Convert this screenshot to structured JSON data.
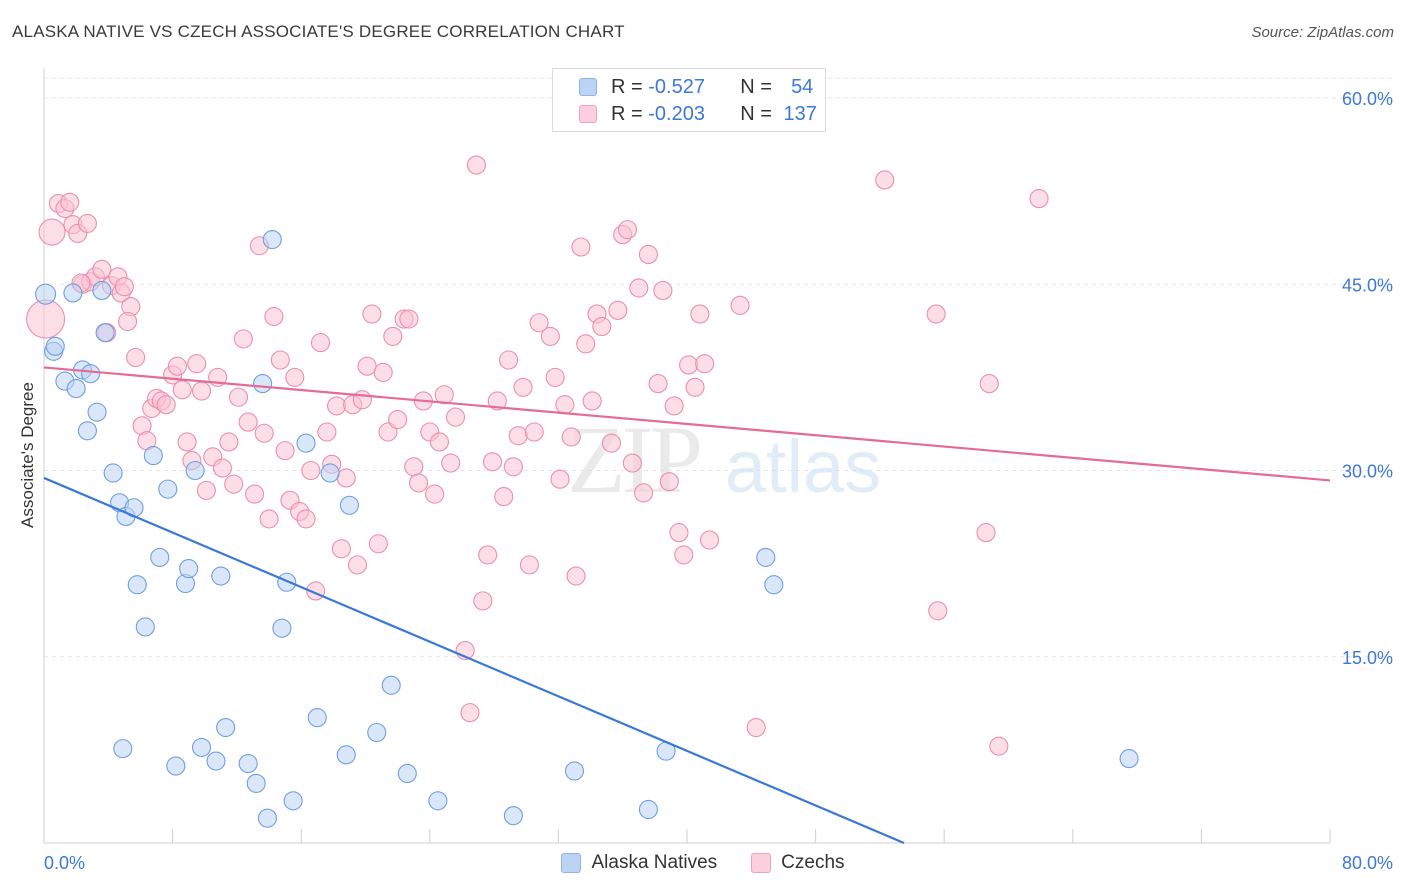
{
  "header": {
    "title": "ALASKA NATIVE VS CZECH ASSOCIATE'S DEGREE CORRELATION CHART",
    "source": "Source: ZipAtlas.com"
  },
  "watermark": {
    "zip": "ZIP",
    "atlas": "atlas"
  },
  "legend": {
    "rows": [
      {
        "r_label": "R =",
        "r_value": "-0.527",
        "n_label": "N =",
        "n_value": "54",
        "color": "#aac9f2"
      },
      {
        "r_label": "R =",
        "r_value": "-0.203",
        "n_label": "N =",
        "n_value": "137",
        "color": "#f7b9cc"
      }
    ]
  },
  "bottom_legend": [
    {
      "label": "Alaska Natives",
      "color": "#aac9f2"
    },
    {
      "label": "Czechs",
      "color": "#f7b9cc"
    }
  ],
  "chart_data": {
    "type": "scatter",
    "ylabel": "Associate's Degree",
    "xlim": [
      0,
      80
    ],
    "ylim": [
      0,
      60
    ],
    "x_tick_labels": [
      "0.0%",
      "80.0%"
    ],
    "y_tick_labels": [
      "15.0%",
      "30.0%",
      "45.0%",
      "60.0%"
    ],
    "y_ticks": [
      15,
      30,
      45,
      60
    ],
    "grid": "horizontal dashed",
    "colors": {
      "blue": "#3a78d6",
      "pink": "#e46b93",
      "tick_text": "#3c78d8"
    },
    "series": [
      {
        "name": "Alaska Natives",
        "color": "#aac9f2",
        "trend": {
          "x": [
            0,
            53.5
          ],
          "y": [
            29.4,
            0
          ]
        },
        "points": [
          [
            0.1,
            44.2
          ],
          [
            0.6,
            39.6
          ],
          [
            0.7,
            40.0
          ],
          [
            1.3,
            37.2
          ],
          [
            1.8,
            44.3
          ],
          [
            2.0,
            36.6
          ],
          [
            2.4,
            38.1
          ],
          [
            2.7,
            33.2
          ],
          [
            2.9,
            37.8
          ],
          [
            3.3,
            34.7
          ],
          [
            3.6,
            44.5
          ],
          [
            3.8,
            41.1
          ],
          [
            4.3,
            29.8
          ],
          [
            4.7,
            27.4
          ],
          [
            5.1,
            26.3
          ],
          [
            5.6,
            27.0
          ],
          [
            5.8,
            20.8
          ],
          [
            6.3,
            17.4
          ],
          [
            6.8,
            31.2
          ],
          [
            7.2,
            23.0
          ],
          [
            7.7,
            28.5
          ],
          [
            8.2,
            6.2
          ],
          [
            8.8,
            20.9
          ],
          [
            9.0,
            22.1
          ],
          [
            9.4,
            30.0
          ],
          [
            9.8,
            7.7
          ],
          [
            10.7,
            6.6
          ],
          [
            11.0,
            21.5
          ],
          [
            11.3,
            9.3
          ],
          [
            12.7,
            6.4
          ],
          [
            13.2,
            4.8
          ],
          [
            13.6,
            37.0
          ],
          [
            13.9,
            2.0
          ],
          [
            14.2,
            48.6
          ],
          [
            14.8,
            17.3
          ],
          [
            15.1,
            21.0
          ],
          [
            15.5,
            3.4
          ],
          [
            16.3,
            32.2
          ],
          [
            17.0,
            10.1
          ],
          [
            17.8,
            29.8
          ],
          [
            18.8,
            7.1
          ],
          [
            19.0,
            27.2
          ],
          [
            20.7,
            8.9
          ],
          [
            21.6,
            12.7
          ],
          [
            22.6,
            5.6
          ],
          [
            24.5,
            3.4
          ],
          [
            29.2,
            2.2
          ],
          [
            33.0,
            5.8
          ],
          [
            37.6,
            2.7
          ],
          [
            38.7,
            7.4
          ],
          [
            44.9,
            23.0
          ],
          [
            45.4,
            20.8
          ],
          [
            67.5,
            6.8
          ],
          [
            4.9,
            7.6
          ]
        ]
      },
      {
        "name": "Czechs",
        "color": "#f7b9cc",
        "trend": {
          "x": [
            0,
            80
          ],
          "y": [
            38.3,
            29.2
          ]
        },
        "points": [
          [
            0.1,
            42.2
          ],
          [
            0.5,
            49.2
          ],
          [
            0.9,
            51.5
          ],
          [
            1.3,
            51.1
          ],
          [
            1.6,
            51.6
          ],
          [
            1.8,
            49.8
          ],
          [
            2.1,
            49.1
          ],
          [
            2.4,
            45.0
          ],
          [
            2.7,
            49.9
          ],
          [
            2.9,
            45.2
          ],
          [
            3.2,
            45.6
          ],
          [
            3.6,
            46.2
          ],
          [
            3.9,
            41.1
          ],
          [
            4.2,
            44.9
          ],
          [
            4.6,
            45.6
          ],
          [
            4.8,
            44.3
          ],
          [
            5.0,
            44.8
          ],
          [
            5.4,
            43.2
          ],
          [
            5.7,
            39.1
          ],
          [
            6.1,
            33.6
          ],
          [
            6.4,
            32.4
          ],
          [
            6.7,
            35.0
          ],
          [
            7.0,
            35.8
          ],
          [
            7.3,
            35.6
          ],
          [
            7.6,
            35.3
          ],
          [
            8.0,
            37.7
          ],
          [
            8.3,
            38.4
          ],
          [
            8.6,
            36.5
          ],
          [
            8.9,
            32.3
          ],
          [
            9.2,
            30.8
          ],
          [
            9.5,
            38.6
          ],
          [
            9.8,
            36.4
          ],
          [
            10.1,
            28.4
          ],
          [
            10.5,
            31.1
          ],
          [
            10.8,
            37.5
          ],
          [
            11.1,
            30.2
          ],
          [
            11.5,
            32.3
          ],
          [
            11.8,
            28.9
          ],
          [
            12.1,
            35.9
          ],
          [
            12.4,
            40.6
          ],
          [
            12.7,
            33.9
          ],
          [
            13.1,
            28.1
          ],
          [
            13.4,
            48.1
          ],
          [
            13.7,
            33.0
          ],
          [
            14.0,
            26.1
          ],
          [
            14.3,
            42.4
          ],
          [
            14.7,
            38.9
          ],
          [
            15.0,
            31.6
          ],
          [
            15.3,
            27.6
          ],
          [
            15.6,
            37.5
          ],
          [
            15.9,
            26.7
          ],
          [
            16.3,
            26.1
          ],
          [
            16.6,
            30.0
          ],
          [
            16.9,
            20.3
          ],
          [
            17.2,
            40.3
          ],
          [
            17.6,
            33.1
          ],
          [
            17.9,
            30.5
          ],
          [
            18.2,
            35.2
          ],
          [
            18.5,
            23.7
          ],
          [
            18.8,
            29.4
          ],
          [
            19.2,
            35.3
          ],
          [
            19.5,
            22.4
          ],
          [
            19.8,
            35.7
          ],
          [
            20.1,
            38.4
          ],
          [
            20.4,
            42.6
          ],
          [
            20.8,
            24.1
          ],
          [
            21.1,
            37.9
          ],
          [
            21.4,
            33.1
          ],
          [
            21.7,
            40.8
          ],
          [
            22.0,
            34.1
          ],
          [
            22.4,
            42.2
          ],
          [
            22.7,
            42.2
          ],
          [
            23.0,
            30.3
          ],
          [
            23.3,
            29.0
          ],
          [
            23.6,
            35.6
          ],
          [
            24.0,
            33.1
          ],
          [
            24.3,
            28.1
          ],
          [
            24.6,
            32.3
          ],
          [
            24.9,
            36.1
          ],
          [
            25.3,
            30.6
          ],
          [
            25.6,
            34.3
          ],
          [
            26.2,
            15.5
          ],
          [
            26.9,
            54.6
          ],
          [
            27.3,
            19.5
          ],
          [
            27.6,
            23.2
          ],
          [
            27.9,
            30.7
          ],
          [
            28.2,
            35.6
          ],
          [
            28.6,
            27.9
          ],
          [
            28.9,
            38.9
          ],
          [
            29.2,
            30.3
          ],
          [
            29.5,
            32.8
          ],
          [
            29.8,
            36.7
          ],
          [
            30.2,
            22.4
          ],
          [
            30.5,
            33.1
          ],
          [
            30.8,
            41.9
          ],
          [
            31.5,
            40.8
          ],
          [
            31.8,
            37.5
          ],
          [
            32.1,
            29.3
          ],
          [
            32.4,
            35.3
          ],
          [
            32.8,
            32.7
          ],
          [
            33.1,
            21.5
          ],
          [
            33.4,
            48.0
          ],
          [
            33.7,
            40.2
          ],
          [
            34.1,
            35.6
          ],
          [
            34.4,
            42.6
          ],
          [
            34.7,
            41.6
          ],
          [
            35.3,
            32.2
          ],
          [
            35.7,
            42.9
          ],
          [
            36.0,
            49.0
          ],
          [
            36.3,
            49.4
          ],
          [
            36.6,
            30.6
          ],
          [
            37.0,
            44.7
          ],
          [
            37.3,
            28.2
          ],
          [
            37.6,
            47.4
          ],
          [
            38.2,
            37.0
          ],
          [
            38.5,
            44.5
          ],
          [
            38.9,
            29.1
          ],
          [
            39.2,
            35.2
          ],
          [
            39.5,
            25.0
          ],
          [
            39.8,
            23.2
          ],
          [
            40.1,
            38.5
          ],
          [
            40.5,
            36.7
          ],
          [
            40.8,
            42.6
          ],
          [
            41.1,
            38.6
          ],
          [
            41.4,
            24.4
          ],
          [
            43.3,
            43.3
          ],
          [
            55.5,
            42.6
          ],
          [
            52.3,
            53.4
          ],
          [
            55.6,
            18.7
          ],
          [
            58.6,
            25.0
          ],
          [
            58.8,
            37.0
          ],
          [
            61.9,
            51.9
          ],
          [
            44.3,
            9.3
          ],
          [
            26.5,
            10.5
          ],
          [
            59.4,
            7.8
          ],
          [
            2.3,
            45.1
          ],
          [
            5.2,
            42.0
          ]
        ]
      }
    ]
  }
}
